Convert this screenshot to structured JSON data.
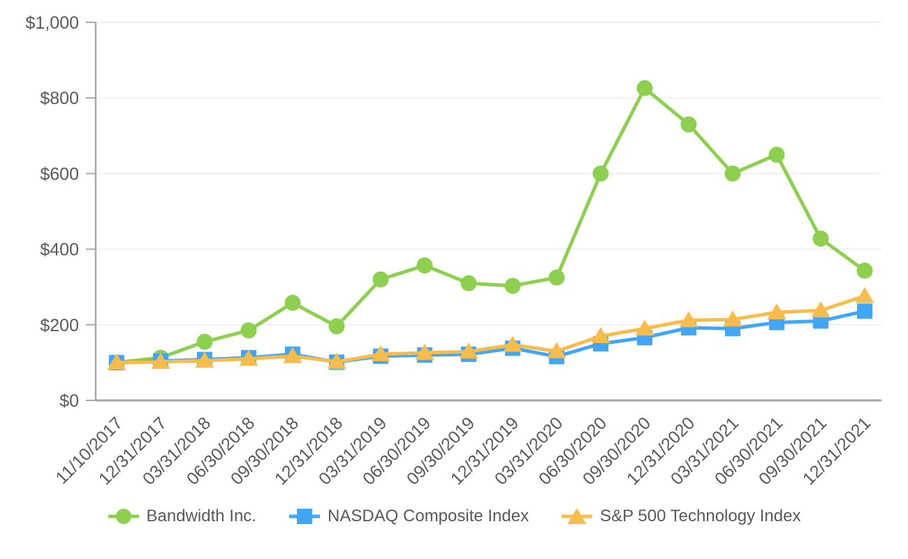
{
  "chart_data": {
    "type": "line",
    "title": "",
    "xlabel": "",
    "ylabel": "",
    "grid": true,
    "legend_position": "bottom",
    "x_tick_labels": [
      "11/10/2017",
      "12/31/2017",
      "03/31/2018",
      "06/30/2018",
      "09/30/2018",
      "12/31/2018",
      "03/31/2019",
      "06/30/2019",
      "09/30/2019",
      "12/31/2019",
      "03/31/2020",
      "06/30/2020",
      "09/30/2020",
      "12/31/2020",
      "03/31/2021",
      "06/30/2021",
      "09/30/2021",
      "12/31/2021"
    ],
    "y_axis": {
      "min": 0,
      "max": 1000,
      "step": 200,
      "tick_labels": [
        "$0",
        "$200",
        "$400",
        "$600",
        "$800",
        "$1,000"
      ]
    },
    "series": [
      {
        "name": "Bandwidth Inc.",
        "marker": "circle",
        "color": "#8DD04F",
        "values": [
          100,
          113,
          155,
          185,
          258,
          196,
          320,
          357,
          310,
          303,
          325,
          600,
          826,
          730,
          600,
          650,
          428,
          343
        ]
      },
      {
        "name": "NASDAQ Composite Index",
        "marker": "square",
        "color": "#41A6F5",
        "values": [
          100,
          104,
          108,
          113,
          122,
          101,
          117,
          120,
          122,
          138,
          116,
          150,
          166,
          192,
          190,
          206,
          210,
          236
        ]
      },
      {
        "name": "S&P 500 Technology Index",
        "marker": "triangle",
        "color": "#F8BC4D",
        "values": [
          100,
          102,
          105,
          110,
          117,
          102,
          122,
          126,
          129,
          147,
          130,
          170,
          190,
          212,
          214,
          233,
          238,
          276
        ]
      }
    ]
  },
  "colors": {
    "text": "#595959",
    "grid": "#ECECEC",
    "axis": "#A7A7A7",
    "background": "#FFFFFF"
  }
}
